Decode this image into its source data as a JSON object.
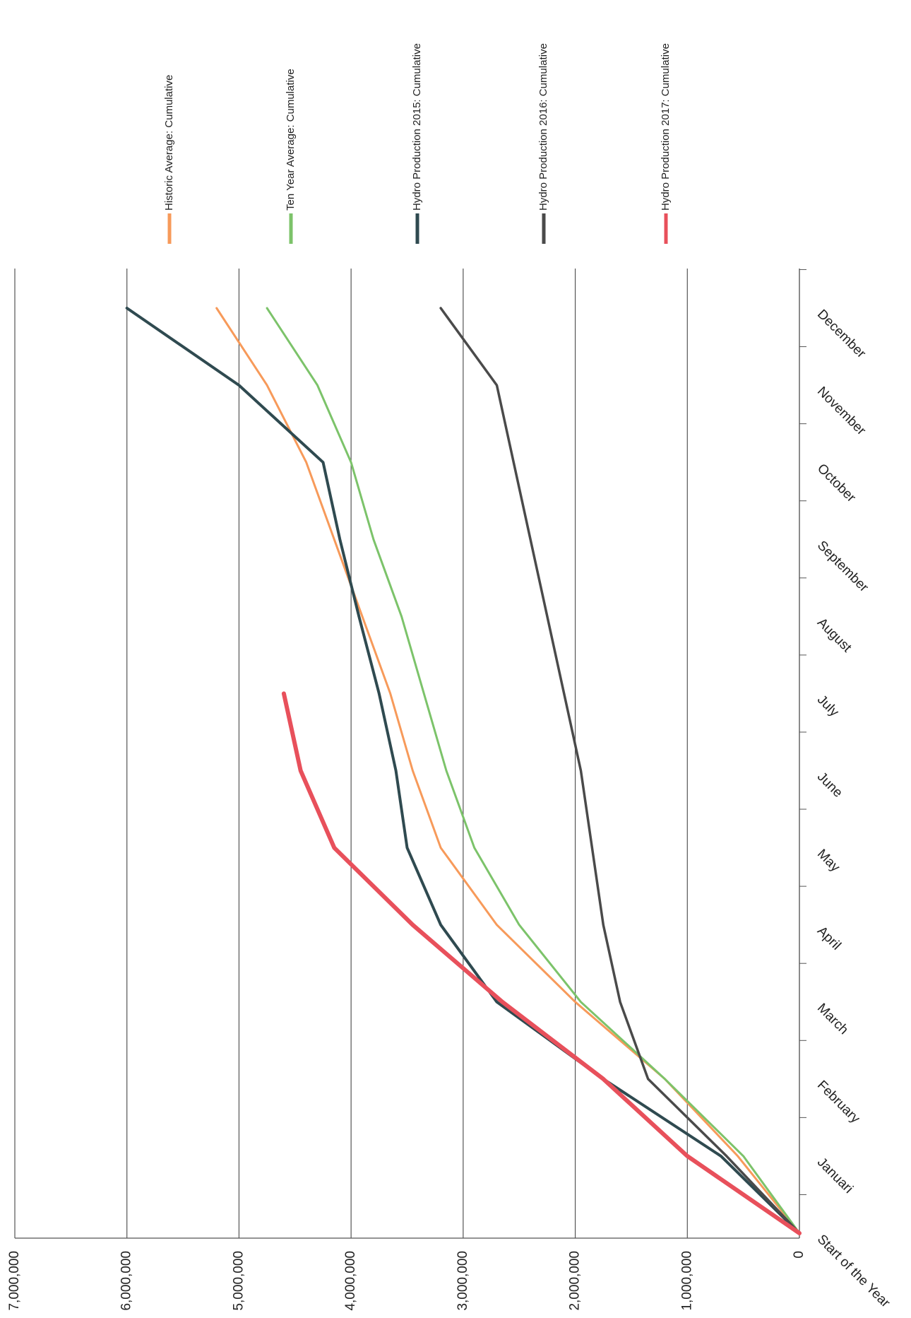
{
  "chart_data": {
    "type": "line",
    "categories": [
      "Start of the Year",
      "Januari",
      "February",
      "March",
      "April",
      "May",
      "June",
      "July",
      "August",
      "September",
      "October",
      "November",
      "December"
    ],
    "ylim": [
      0,
      7000000
    ],
    "yticks": [
      0,
      {
        "value": 1000000,
        "label": "1,000,000"
      },
      {
        "value": 2000000,
        "label": "2,000,000"
      },
      {
        "value": 3000000,
        "label": "3,000,000"
      },
      {
        "value": 4000000,
        "label": "4,000,000"
      },
      {
        "value": 5000000,
        "label": "5,000,000"
      },
      {
        "value": 6000000,
        "label": "6,000,000"
      },
      {
        "value": 7000000,
        "label": "7,000,000"
      }
    ],
    "grid": true,
    "rotated": true,
    "series": [
      {
        "name": "Historic Average: Cumulative",
        "color": "#f79a5a",
        "width": 3,
        "values": [
          0,
          550000,
          1200000,
          2000000,
          2700000,
          3200000,
          3450000,
          3650000,
          3900000,
          4150000,
          4400000,
          4750000,
          5200000
        ]
      },
      {
        "name": "Ten Year Average: Cumulative",
        "color": "#7cc36a",
        "width": 3,
        "values": [
          0,
          500000,
          1200000,
          1950000,
          2500000,
          2900000,
          3150000,
          3350000,
          3550000,
          3800000,
          4000000,
          4300000,
          4750000
        ]
      },
      {
        "name": "Hydro Production 2015: Cumulative",
        "color": "#2f4a50",
        "width": 4,
        "values": [
          0,
          700000,
          1750000,
          2700000,
          3200000,
          3500000,
          3600000,
          3750000,
          3930000,
          4100000,
          4250000,
          5000000,
          6000000
        ]
      },
      {
        "name": "Hydro Production 2016: Cumulative",
        "color": "#4a4a4a",
        "width": 3.5,
        "values": [
          0,
          650000,
          1350000,
          1600000,
          1750000,
          1850000,
          1950000,
          2100000,
          2250000,
          2400000,
          2550000,
          2700000,
          3200000
        ]
      },
      {
        "name": "Hydro Production 2017: Cumulative",
        "color": "#e8505b",
        "width": 6,
        "values": [
          0,
          1000000,
          1750000,
          2650000,
          3450000,
          4150000,
          4450000,
          4600000,
          null,
          null,
          null,
          null,
          null
        ]
      }
    ]
  }
}
